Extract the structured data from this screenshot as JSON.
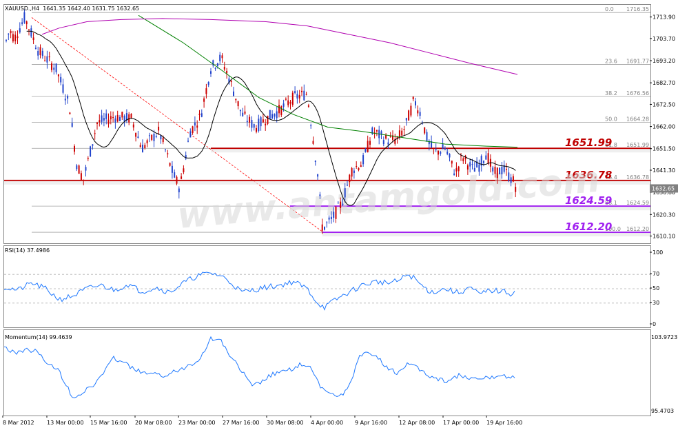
{
  "header": {
    "symbol": "XAUUSD.,H4",
    "ohlc": "1641.35 1642.40 1631.75 1632.65"
  },
  "price_axis": {
    "labels": [
      "1713.90",
      "1703.70",
      "1693.20",
      "1682.70",
      "1672.50",
      "1662.00",
      "1651.50",
      "1641.30",
      "1630.80",
      "1620.30",
      "1610.10"
    ],
    "current_price": "1632.65"
  },
  "watermark": "www.antamgold.com",
  "fibonacci": {
    "levels": [
      {
        "ratio": "0.0",
        "price": "1716.35"
      },
      {
        "ratio": "23.6",
        "price": "1691.77"
      },
      {
        "ratio": "38.2",
        "price": "1676.56"
      },
      {
        "ratio": "50.0",
        "price": "1664.28"
      },
      {
        "ratio": "61.8",
        "price": "1651.99"
      },
      {
        "ratio": "76.4",
        "price": "1636.78"
      },
      {
        "ratio": "88.1",
        "price": "1624.59"
      },
      {
        "ratio": "100.0",
        "price": "1612.20"
      }
    ]
  },
  "levels": [
    {
      "label": "1651.99",
      "color": "#c00000"
    },
    {
      "label": "1636.78",
      "color": "#c00000"
    },
    {
      "label": "1624.59",
      "color": "#a020f0"
    },
    {
      "label": "1612.20",
      "color": "#a020f0"
    }
  ],
  "rsi": {
    "title": "RSI(14) 37.4986",
    "axis_labels": [
      "100",
      "70",
      "50",
      "30",
      "0"
    ]
  },
  "momentum": {
    "title": "Momentum(14) 99.4639",
    "axis_labels": [
      "103.9723",
      "95.4703"
    ]
  },
  "time_axis": [
    "8 Mar 2012",
    "13 Mar 00:00",
    "15 Mar 16:00",
    "20 Mar 08:00",
    "23 Mar 00:00",
    "27 Mar 16:00",
    "30 Mar 08:00",
    "4 Apr 00:00",
    "9 Apr 16:00",
    "12 Apr 08:00",
    "17 Apr 00:00",
    "19 Apr 16:00"
  ],
  "colors": {
    "bull": "#2244cc",
    "bear": "#cc0000",
    "ma_fast": "#000000",
    "ma_mid": "#008000",
    "ma_slow": "#b000b0",
    "indicator": "#1e78ff"
  }
}
